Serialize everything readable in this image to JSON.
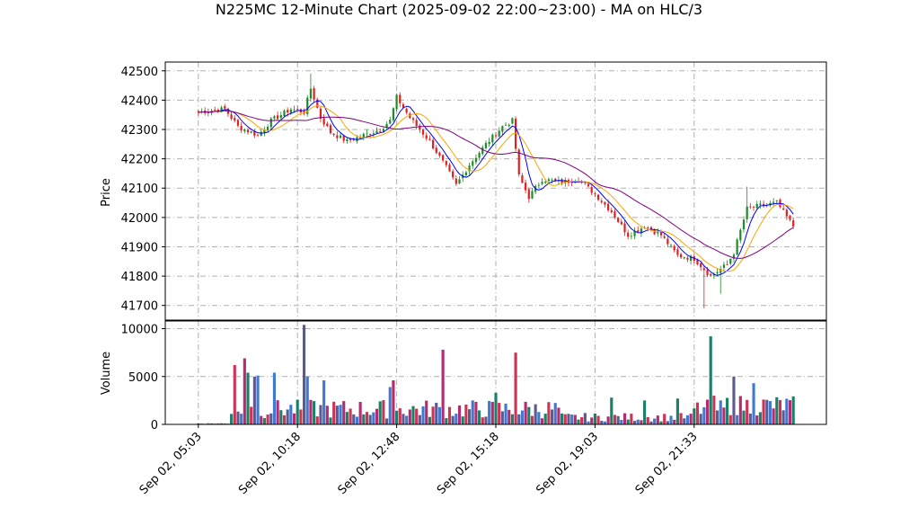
{
  "chart_data": {
    "type": "candlestick",
    "title": "N225MC 12-Minute Chart (2025-09-02 22:00~23:00) - MA on HLC/3",
    "price_panel": {
      "ylabel": "Price",
      "ylim": [
        41650,
        42530
      ],
      "yticks": [
        41700,
        41800,
        41900,
        42000,
        42100,
        42200,
        42300,
        42400,
        42500
      ],
      "grid": true
    },
    "volume_panel": {
      "ylabel": "Volume",
      "ylim": [
        0,
        10800
      ],
      "yticks": [
        0,
        5000,
        10000
      ],
      "grid": true
    },
    "x_ticks": [
      {
        "i": 0,
        "label": "Sep 02, 05:03"
      },
      {
        "i": 30,
        "label": "Sep 02, 10:18"
      },
      {
        "i": 60,
        "label": "Sep 02, 12:48"
      },
      {
        "i": 90,
        "label": "Sep 02, 15:18"
      },
      {
        "i": 120,
        "label": "Sep 02, 19:03"
      },
      {
        "i": 150,
        "label": "Sep 02, 21:33"
      }
    ],
    "x_range": [
      -10,
      190
    ],
    "n_bars": 181,
    "close_anchors": [
      [
        0,
        42360
      ],
      [
        8,
        42370
      ],
      [
        12,
        42310
      ],
      [
        18,
        42280
      ],
      [
        22,
        42330
      ],
      [
        28,
        42370
      ],
      [
        32,
        42360
      ],
      [
        34,
        42440
      ],
      [
        37,
        42340
      ],
      [
        40,
        42290
      ],
      [
        45,
        42260
      ],
      [
        50,
        42280
      ],
      [
        55,
        42300
      ],
      [
        58,
        42330
      ],
      [
        60,
        42410
      ],
      [
        64,
        42340
      ],
      [
        70,
        42260
      ],
      [
        75,
        42170
      ],
      [
        78,
        42110
      ],
      [
        82,
        42180
      ],
      [
        87,
        42250
      ],
      [
        92,
        42310
      ],
      [
        95,
        42330
      ],
      [
        97,
        42140
      ],
      [
        100,
        42070
      ],
      [
        104,
        42130
      ],
      [
        110,
        42120
      ],
      [
        115,
        42130
      ],
      [
        120,
        42080
      ],
      [
        125,
        42020
      ],
      [
        130,
        41940
      ],
      [
        135,
        41970
      ],
      [
        140,
        41940
      ],
      [
        145,
        41870
      ],
      [
        150,
        41860
      ],
      [
        155,
        41800
      ],
      [
        160,
        41840
      ],
      [
        162,
        41880
      ],
      [
        166,
        42030
      ],
      [
        170,
        42040
      ],
      [
        175,
        42050
      ],
      [
        180,
        41970
      ]
    ],
    "volume_spikes": [
      [
        11,
        6200
      ],
      [
        14,
        6900
      ],
      [
        15,
        5400
      ],
      [
        17,
        5000
      ],
      [
        18,
        5100
      ],
      [
        23,
        5400
      ],
      [
        32,
        10400
      ],
      [
        33,
        5000
      ],
      [
        38,
        4600
      ],
      [
        58,
        3900
      ],
      [
        59,
        4600
      ],
      [
        74,
        7800
      ],
      [
        90,
        3300
      ],
      [
        96,
        7500
      ],
      [
        125,
        2800
      ],
      [
        135,
        2500
      ],
      [
        145,
        2700
      ],
      [
        155,
        9200
      ],
      [
        156,
        3000
      ],
      [
        162,
        5000
      ],
      [
        168,
        4300
      ]
    ],
    "ma_series": [
      {
        "color": "#0000ff",
        "period": 5
      },
      {
        "color": "#ffa500",
        "period": 10
      },
      {
        "color": "#800080",
        "period": 25
      }
    ],
    "up_color": "#1e8c28",
    "down_color": "#e02020",
    "vol_colors": [
      "#1b7f6a",
      "#cc3355",
      "#5b5b8f",
      "#3e7ad1",
      "#b42b6e"
    ]
  }
}
